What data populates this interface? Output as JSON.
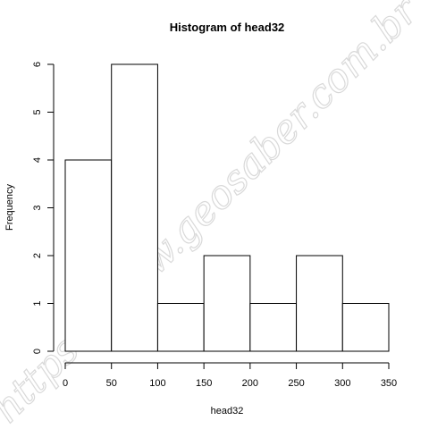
{
  "chart_data": {
    "type": "bar",
    "title": "Histogram of head32",
    "xlabel": "head32",
    "ylabel": "Frequency",
    "bins": [
      {
        "start": 0,
        "end": 50,
        "count": 4
      },
      {
        "start": 50,
        "end": 100,
        "count": 6
      },
      {
        "start": 100,
        "end": 150,
        "count": 1
      },
      {
        "start": 150,
        "end": 200,
        "count": 2
      },
      {
        "start": 200,
        "end": 250,
        "count": 1
      },
      {
        "start": 250,
        "end": 300,
        "count": 2
      },
      {
        "start": 300,
        "end": 350,
        "count": 1
      }
    ],
    "xlim": [
      0,
      350
    ],
    "ylim": [
      0,
      6
    ],
    "xticks": [
      0,
      50,
      100,
      150,
      200,
      250,
      300,
      350
    ],
    "yticks": [
      0,
      1,
      2,
      3,
      4,
      5,
      6
    ],
    "grid": false,
    "bar_fill": "#ffffff",
    "bar_stroke": "#000000"
  },
  "watermark": {
    "text": "https://www.geosaber.com.br"
  }
}
